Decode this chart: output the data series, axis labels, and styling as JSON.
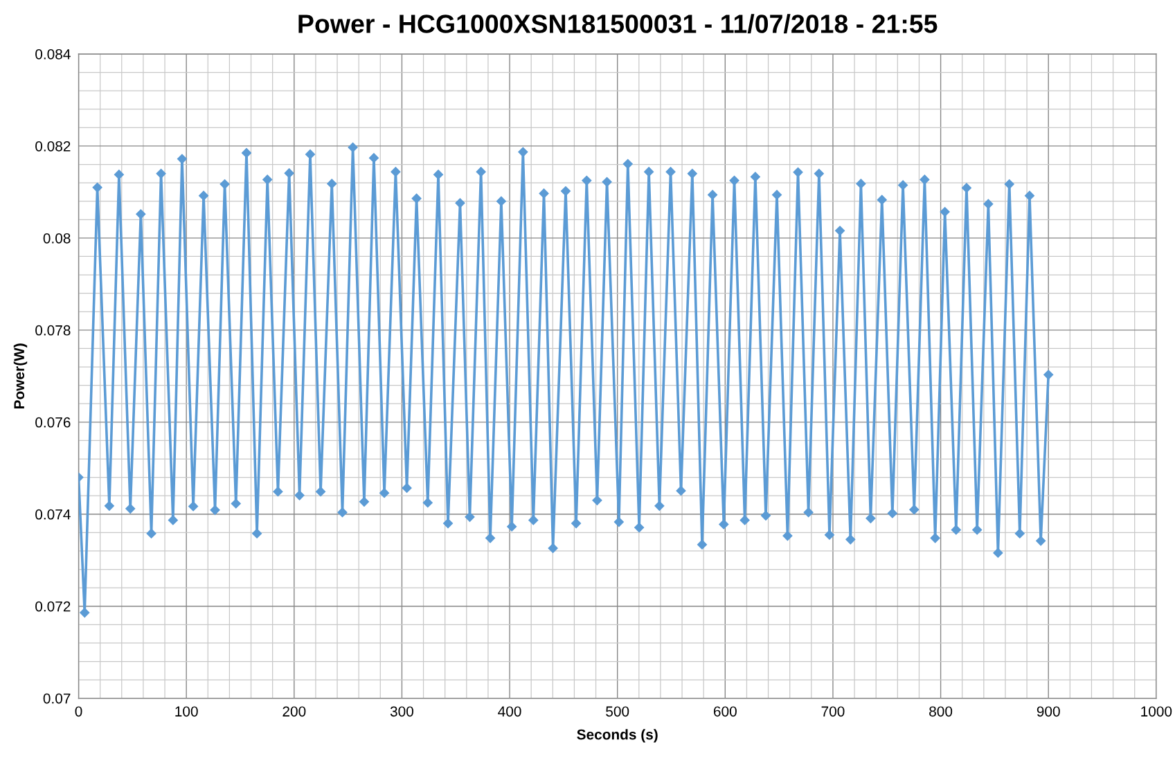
{
  "chart_data": {
    "type": "line",
    "title": "Power - HCG1000XSN181500031 - 11/07/2018 - 21:55",
    "xlabel": "Seconds (s)",
    "ylabel": "Power(W)",
    "series": [
      {
        "color": "#5b9bd5",
        "x": [
          0,
          5.6,
          17.4,
          28.5,
          37.5,
          48,
          57.7,
          67.5,
          76.5,
          87.6,
          96,
          106.4,
          116,
          126.6,
          135.6,
          146,
          155.8,
          165.5,
          175.2,
          185,
          195.4,
          205,
          214.9,
          224.6,
          235,
          244.8,
          254.5,
          265,
          274,
          283.7,
          294.2,
          304.6,
          313.6,
          324,
          333.8,
          342.8,
          354,
          363,
          373.4,
          382,
          392.2,
          402,
          412.4,
          422,
          431.8,
          440.2,
          452,
          461.7,
          471.5,
          481.2,
          490.3,
          501.4,
          509.7,
          520.2,
          529.2,
          539,
          549.4,
          559,
          569.5,
          578.6,
          588.3,
          598.7,
          608.5,
          618.2,
          628,
          637.7,
          648,
          657.9,
          667.6,
          677.3,
          687.1,
          696.8,
          706.5,
          716.3,
          726,
          735,
          745.5,
          755.2,
          765,
          775.4,
          785.1,
          794.9,
          803.9,
          814.3,
          824,
          833.8,
          844.2,
          853.2,
          863.7,
          873.4,
          882.5,
          892.9,
          900
        ],
        "values": [
          0.0748,
          0.07186,
          0.0811,
          0.07418,
          0.08138,
          0.07412,
          0.08052,
          0.07358,
          0.0814,
          0.07387,
          0.08172,
          0.07417,
          0.08092,
          0.07409,
          0.08117,
          0.07423,
          0.08185,
          0.07358,
          0.08127,
          0.07449,
          0.08141,
          0.07441,
          0.08182,
          0.07449,
          0.08118,
          0.07404,
          0.08197,
          0.07427,
          0.08174,
          0.07446,
          0.08144,
          0.07457,
          0.08086,
          0.07425,
          0.08138,
          0.0738,
          0.08076,
          0.07394,
          0.08144,
          0.07348,
          0.0808,
          0.07373,
          0.08187,
          0.07387,
          0.08097,
          0.07326,
          0.08102,
          0.0738,
          0.08125,
          0.0743,
          0.08122,
          0.07383,
          0.08161,
          0.07371,
          0.08144,
          0.07418,
          0.08144,
          0.07451,
          0.0814,
          0.07334,
          0.08094,
          0.07378,
          0.08125,
          0.07387,
          0.08133,
          0.07397,
          0.08094,
          0.07353,
          0.08143,
          0.07404,
          0.0814,
          0.07355,
          0.08016,
          0.07345,
          0.08118,
          0.07391,
          0.08083,
          0.07402,
          0.08115,
          0.0741,
          0.08127,
          0.07348,
          0.08057,
          0.07366,
          0.08109,
          0.07366,
          0.08074,
          0.07316,
          0.08117,
          0.07358,
          0.08092,
          0.07342,
          0.07703
        ]
      }
    ],
    "xlim": [
      0,
      1000
    ],
    "xticks": [
      0,
      100,
      200,
      300,
      400,
      500,
      600,
      700,
      800,
      900,
      1000
    ],
    "ylim": [
      0.07,
      0.084
    ],
    "yticks": [
      0.07,
      0.072,
      0.074,
      0.076,
      0.078,
      0.08,
      0.082,
      0.084
    ],
    "grid": true,
    "marker": "diamond",
    "line_style": "solid"
  }
}
